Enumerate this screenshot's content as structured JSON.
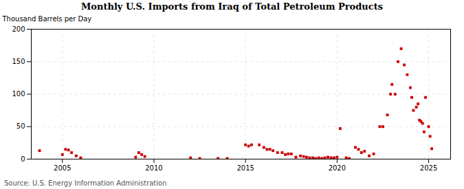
{
  "chart_data": {
    "type": "scatter",
    "title": "Monthly U.S. Imports from Iraq of Total Petroleum Products",
    "ylabel": "Thousand Barrels per Day",
    "source": "Source: U.S. Energy Information Administration",
    "color": "#cc0000",
    "marker": "square",
    "grid": true,
    "xlim": [
      2003.3,
      2026.2
    ],
    "xticks": [
      2005,
      2010,
      2015,
      2020,
      2025
    ],
    "ylim": [
      0,
      200
    ],
    "yticks": [
      0,
      50,
      100,
      150,
      200
    ],
    "x": [
      2003.75,
      2005.0,
      2005.17,
      2005.33,
      2005.5,
      2005.75,
      2006.0,
      2009.0,
      2009.17,
      2009.33,
      2009.5,
      2012.0,
      2012.5,
      2013.5,
      2014.0,
      2015.0,
      2015.17,
      2015.33,
      2015.75,
      2016.0,
      2016.17,
      2016.33,
      2016.5,
      2016.75,
      2017.0,
      2017.17,
      2017.33,
      2017.5,
      2017.75,
      2018.0,
      2018.17,
      2018.33,
      2018.5,
      2018.67,
      2018.83,
      2019.0,
      2019.17,
      2019.33,
      2019.5,
      2019.67,
      2019.83,
      2020.0,
      2020.17,
      2020.5,
      2020.67,
      2021.0,
      2021.17,
      2021.33,
      2021.5,
      2021.75,
      2022.0,
      2022.33,
      2022.5,
      2022.75,
      2022.92,
      2023.0,
      2023.17,
      2023.33,
      2023.5,
      2023.67,
      2023.83,
      2024.0,
      2024.08,
      2024.17,
      2024.33,
      2024.42,
      2024.5,
      2024.58,
      2024.67,
      2024.75,
      2024.83,
      2025.0,
      2025.08,
      2025.17
    ],
    "values": [
      13,
      7,
      15,
      14,
      10,
      5,
      2,
      3,
      10,
      7,
      4,
      2,
      1,
      1,
      1,
      22,
      20,
      22,
      22,
      18,
      15,
      15,
      13,
      10,
      10,
      7,
      8,
      8,
      3,
      5,
      4,
      3,
      2,
      2,
      1,
      2,
      1,
      2,
      3,
      2,
      2,
      3,
      47,
      2,
      1,
      18,
      15,
      10,
      12,
      5,
      8,
      50,
      50,
      68,
      100,
      115,
      100,
      150,
      170,
      145,
      130,
      110,
      95,
      75,
      80,
      85,
      60,
      58,
      55,
      42,
      95,
      50,
      35,
      16
    ]
  }
}
